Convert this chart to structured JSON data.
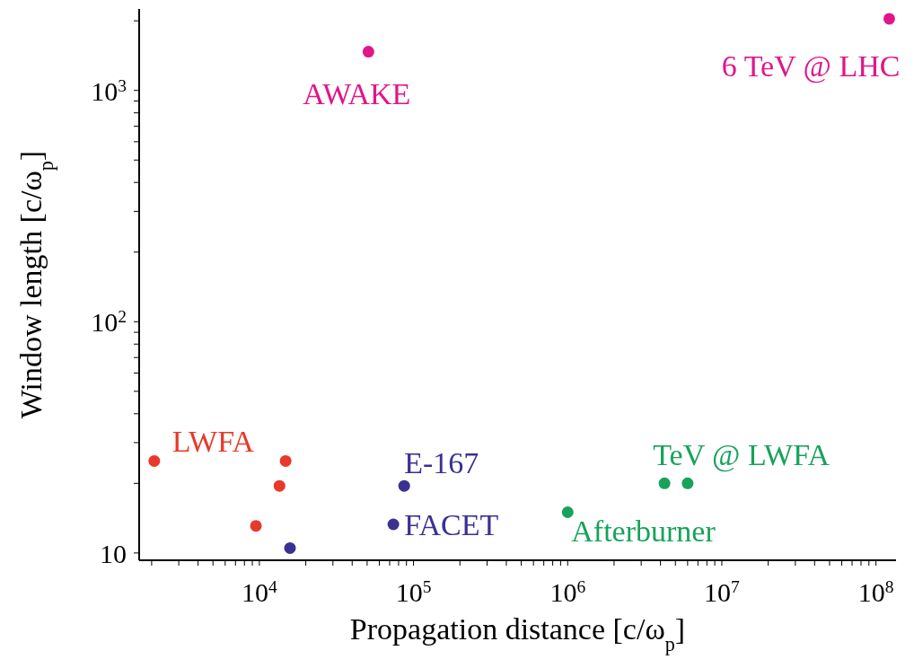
{
  "chart_data": {
    "type": "scatter",
    "xlabel": "Propagation distance [c/ω$_{p}$]",
    "ylabel": "Window length [c/ω$_{p}$]",
    "log": "xy",
    "marker": "circle",
    "xlim": [
      1660,
      135000000
    ],
    "ylim": [
      9.3,
      2250
    ],
    "xticks": [
      {
        "value": 2000,
        "label": null
      },
      {
        "value": 3000,
        "label": null
      },
      {
        "value": 4000,
        "label": null
      },
      {
        "value": 5000,
        "label": null
      },
      {
        "value": 6000,
        "label": null
      },
      {
        "value": 7000,
        "label": null
      },
      {
        "value": 8000,
        "label": null
      },
      {
        "value": 9000,
        "label": null
      },
      {
        "value": 10000,
        "label": "10$^{4}$"
      },
      {
        "value": 20000,
        "label": null
      },
      {
        "value": 30000,
        "label": null
      },
      {
        "value": 40000,
        "label": null
      },
      {
        "value": 50000,
        "label": null
      },
      {
        "value": 60000,
        "label": null
      },
      {
        "value": 70000,
        "label": null
      },
      {
        "value": 80000,
        "label": null
      },
      {
        "value": 90000,
        "label": null
      },
      {
        "value": 100000,
        "label": "10$^{5}$"
      },
      {
        "value": 200000,
        "label": null
      },
      {
        "value": 300000,
        "label": null
      },
      {
        "value": 400000,
        "label": null
      },
      {
        "value": 500000,
        "label": null
      },
      {
        "value": 600000,
        "label": null
      },
      {
        "value": 700000,
        "label": null
      },
      {
        "value": 800000,
        "label": null
      },
      {
        "value": 900000,
        "label": null
      },
      {
        "value": 1000000,
        "label": "10$^{6}$"
      },
      {
        "value": 2000000,
        "label": null
      },
      {
        "value": 3000000,
        "label": null
      },
      {
        "value": 4000000,
        "label": null
      },
      {
        "value": 5000000,
        "label": null
      },
      {
        "value": 6000000,
        "label": null
      },
      {
        "value": 7000000,
        "label": null
      },
      {
        "value": 8000000,
        "label": null
      },
      {
        "value": 9000000,
        "label": null
      },
      {
        "value": 10000000,
        "label": "10$^{7}$"
      },
      {
        "value": 20000000,
        "label": null
      },
      {
        "value": 30000000,
        "label": null
      },
      {
        "value": 40000000,
        "label": null
      },
      {
        "value": 50000000,
        "label": null
      },
      {
        "value": 60000000,
        "label": null
      },
      {
        "value": 70000000,
        "label": null
      },
      {
        "value": 80000000,
        "label": null
      },
      {
        "value": 90000000,
        "label": null
      },
      {
        "value": 100000000,
        "label": "10$^{8}$"
      }
    ],
    "yticks": [
      10,
      {
        "value": 20,
        "label": null
      },
      {
        "value": 30,
        "label": null
      },
      {
        "value": 40,
        "label": null
      },
      {
        "value": 50,
        "label": null
      },
      {
        "value": 60,
        "label": null
      },
      {
        "value": 70,
        "label": null
      },
      {
        "value": 80,
        "label": null
      },
      {
        "value": 90,
        "label": null
      },
      {
        "value": 100,
        "label": "10$^{2}$"
      },
      {
        "value": 200,
        "label": null
      },
      {
        "value": 300,
        "label": null
      },
      {
        "value": 400,
        "label": null
      },
      {
        "value": 500,
        "label": null
      },
      {
        "value": 600,
        "label": null
      },
      {
        "value": 700,
        "label": null
      },
      {
        "value": 800,
        "label": null
      },
      {
        "value": 900,
        "label": null
      },
      {
        "value": 1000,
        "label": "10$^{3}$"
      },
      {
        "value": 2000,
        "label": null
      }
    ],
    "series": [
      {
        "name": "LWFA",
        "color": "#e8392a",
        "x": [
          2080,
          14800,
          13500,
          9500
        ],
        "values": [
          25,
          25,
          19.5,
          13.1
        ]
      },
      {
        "name": "E-167",
        "color": "#3a3192",
        "x": [
          87000
        ],
        "values": [
          19.5
        ]
      },
      {
        "name": "FACET",
        "color": "#3a3192",
        "x": [
          74000,
          15800
        ],
        "values": [
          13.3,
          10.5
        ]
      },
      {
        "name": "Afterburner",
        "color": "#16a35a",
        "x": [
          1000000
        ],
        "values": [
          15
        ]
      },
      {
        "name": "TeV @ LWFA",
        "color": "#16a35a",
        "x": [
          4250000,
          6000000
        ],
        "values": [
          20,
          20
        ]
      },
      {
        "name": "AWAKE",
        "color": "#e0168a",
        "x": [
          51000
        ],
        "values": [
          1470
        ]
      },
      {
        "name": "6 TeV @ LHC",
        "color": "#e0168a",
        "x": [
          122000000
        ],
        "values": [
          2040
        ]
      }
    ]
  }
}
